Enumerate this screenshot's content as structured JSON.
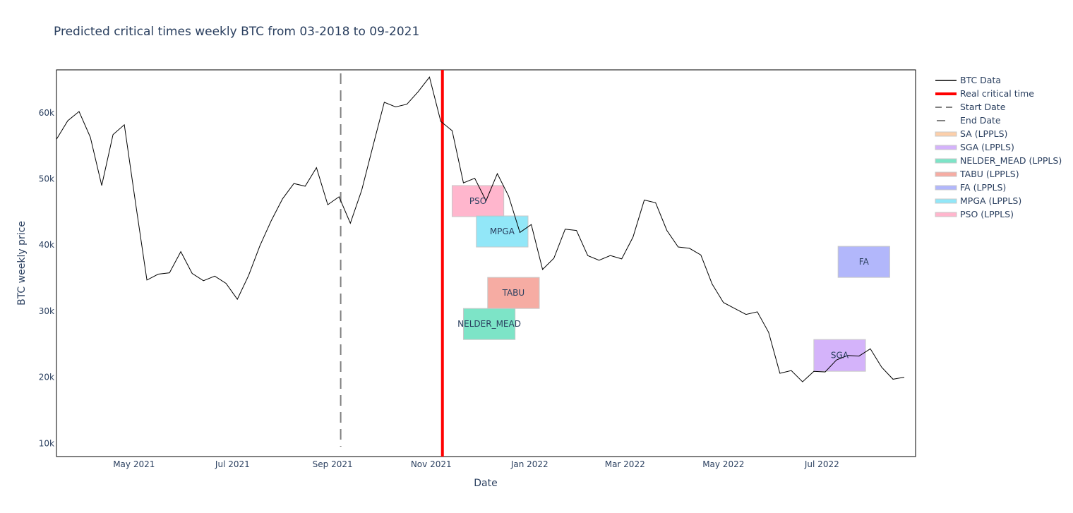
{
  "chart_data": {
    "type": "line",
    "title": "Predicted critical times weekly BTC from 03-2018 to 09-2021",
    "xlabel": "Date",
    "ylabel": "BTC weekly price",
    "x_range": [
      "2021-03-14",
      "2022-08-28"
    ],
    "ylim": [
      8000,
      66500
    ],
    "x_ticks": [
      {
        "date": "2021-05-01",
        "label": "May 2021"
      },
      {
        "date": "2021-07-01",
        "label": "Jul 2021"
      },
      {
        "date": "2021-09-01",
        "label": "Sep 2021"
      },
      {
        "date": "2021-11-01",
        "label": "Nov 2021"
      },
      {
        "date": "2022-01-01",
        "label": "Jan 2022"
      },
      {
        "date": "2022-03-01",
        "label": "Mar 2022"
      },
      {
        "date": "2022-05-01",
        "label": "May 2022"
      },
      {
        "date": "2022-07-01",
        "label": "Jul 2022"
      }
    ],
    "y_ticks": [
      {
        "value": 10000,
        "label": "10k"
      },
      {
        "value": 20000,
        "label": "20k"
      },
      {
        "value": 30000,
        "label": "30k"
      },
      {
        "value": 40000,
        "label": "40k"
      },
      {
        "value": 50000,
        "label": "50k"
      },
      {
        "value": 60000,
        "label": "60k"
      }
    ],
    "series": [
      {
        "name": "BTC Data",
        "color": "#000000",
        "start_date": "2021-03-14",
        "step_days": 7,
        "values": [
          56000,
          58800,
          60200,
          56300,
          49000,
          56700,
          58200,
          46300,
          34700,
          35600,
          35800,
          39000,
          35700,
          34600,
          35300,
          34200,
          31800,
          35400,
          39900,
          43700,
          47000,
          49300,
          48900,
          51700,
          46100,
          47300,
          43300,
          48300,
          55000,
          61600,
          60900,
          61300,
          63200,
          65400,
          58700,
          57300,
          49400,
          50100,
          46700,
          50800,
          47400,
          41900,
          43100,
          36300,
          38000,
          42400,
          42200,
          38400,
          37700,
          38400,
          37900,
          41200,
          46800,
          46400,
          42200,
          39700,
          39500,
          38500,
          34100,
          31300,
          30400,
          29500,
          29900,
          26800,
          20600,
          21000,
          19300,
          20900,
          20800,
          22600,
          23300,
          23200,
          24300,
          21500,
          19700,
          20000
        ]
      }
    ],
    "vertical_lines": [
      {
        "name": "Real critical time",
        "date": "2021-11-08",
        "color": "#ff0000",
        "style": "solid"
      },
      {
        "name": "Start Date",
        "date": "2021-09-06",
        "color": "#808080",
        "style": "dash"
      }
    ],
    "boxes": [
      {
        "name": "PSO (LPPLS)",
        "label": "PSO",
        "x0": "2021-11-14",
        "x1": "2021-12-16",
        "y0": 44300,
        "y1": 49000,
        "color": "#ffa9c4"
      },
      {
        "name": "MPGA (LPPLS)",
        "label": "MPGA",
        "x0": "2021-11-29",
        "x1": "2021-12-31",
        "y0": 39700,
        "y1": 44400,
        "color": "#7fe3f7"
      },
      {
        "name": "TABU (LPPLS)",
        "label": "TABU",
        "x0": "2021-12-06",
        "x1": "2022-01-07",
        "y0": 30400,
        "y1": 35100,
        "color": "#f59e93"
      },
      {
        "name": "NELDER_MEAD (LPPLS)",
        "label": "NELDER_MEAD",
        "x0": "2021-11-21",
        "x1": "2021-12-23",
        "y0": 25700,
        "y1": 30400,
        "color": "#66dfbd"
      },
      {
        "name": "SGA (LPPLS)",
        "label": "SGA",
        "x0": "2022-06-26",
        "x1": "2022-07-28",
        "y0": 20900,
        "y1": 25700,
        "color": "#cda6f9"
      },
      {
        "name": "FA (LPPLS)",
        "label": "FA",
        "x0": "2022-07-11",
        "x1": "2022-08-12",
        "y0": 35100,
        "y1": 39800,
        "color": "#a5aafa"
      }
    ],
    "legend": {
      "placement": "right",
      "entries": [
        {
          "name": "BTC Data",
          "kind": "line",
          "color": "#000000"
        },
        {
          "name": "Real critical time",
          "kind": "thick-line",
          "color": "#ff0000"
        },
        {
          "name": "Start Date",
          "kind": "dash",
          "color": "#808080"
        },
        {
          "name": "End Date",
          "kind": "line",
          "color": "#808080"
        },
        {
          "name": "SA (LPPLS)",
          "kind": "box",
          "color": "#fcc79b"
        },
        {
          "name": "SGA (LPPLS)",
          "kind": "box",
          "color": "#cda6f9"
        },
        {
          "name": "NELDER_MEAD (LPPLS)",
          "kind": "box",
          "color": "#66dfbd"
        },
        {
          "name": "TABU (LPPLS)",
          "kind": "box",
          "color": "#f59e93"
        },
        {
          "name": "FA (LPPLS)",
          "kind": "box",
          "color": "#a5aafa"
        },
        {
          "name": "MPGA (LPPLS)",
          "kind": "box",
          "color": "#7fe3f7"
        },
        {
          "name": "PSO (LPPLS)",
          "kind": "box",
          "color": "#ffa9c4"
        }
      ]
    }
  }
}
